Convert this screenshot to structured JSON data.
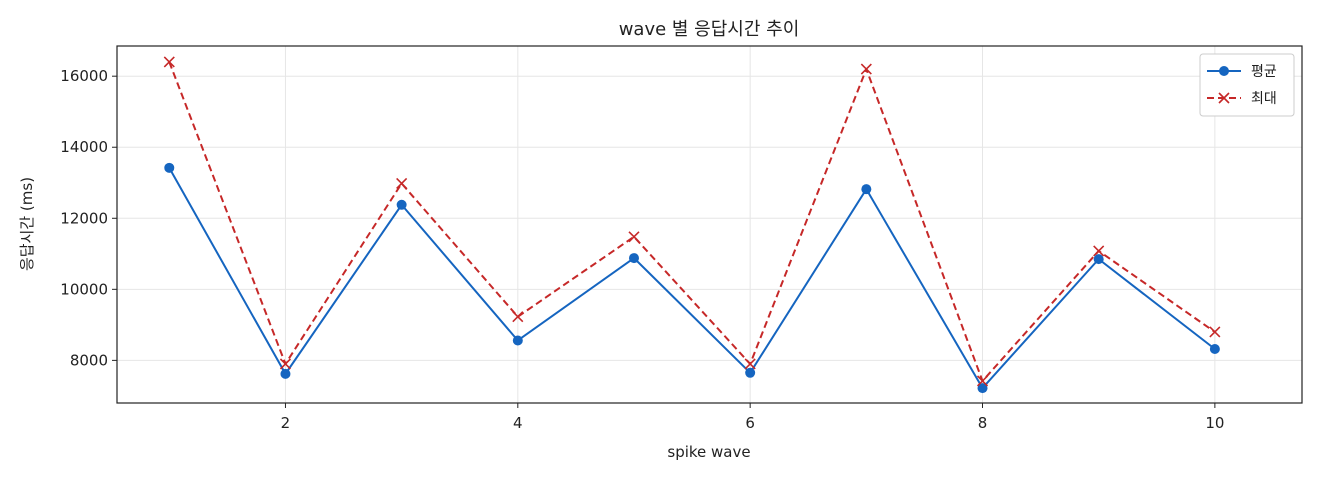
{
  "chart_data": {
    "type": "line",
    "title": "wave 별 응답시간 추이",
    "xlabel": "spike wave",
    "ylabel": "응답시간 (ms)",
    "x": [
      1,
      2,
      3,
      4,
      5,
      6,
      7,
      8,
      9,
      10
    ],
    "xlim": [
      0.55,
      10.75
    ],
    "ylim": [
      6800,
      16850
    ],
    "xticks": [
      2,
      4,
      6,
      8,
      10
    ],
    "yticks": [
      8000,
      10000,
      12000,
      14000,
      16000
    ],
    "grid": true,
    "legend_position": "top-right",
    "series": [
      {
        "name": "평균",
        "values": [
          13420,
          7620,
          12380,
          8560,
          10880,
          7650,
          12820,
          7220,
          10850,
          8320
        ],
        "color": "#1565c0",
        "style": "solid",
        "marker": "circle"
      },
      {
        "name": "최대",
        "values": [
          16400,
          7900,
          12980,
          9230,
          11480,
          7900,
          16200,
          7420,
          11080,
          8800
        ],
        "color": "#c62828",
        "style": "dashed",
        "marker": "x"
      }
    ]
  }
}
